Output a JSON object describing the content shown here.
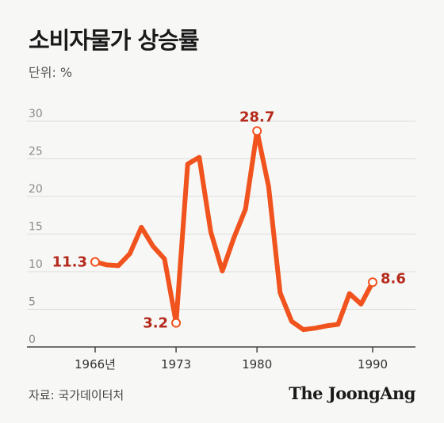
{
  "title": "소비자물가 상승률",
  "unit": "단위: %",
  "source": "자료: 국가데이터처",
  "brand": "The JoongAng",
  "chart_data": {
    "type": "line",
    "title": "소비자물가 상승률",
    "xlabel": "",
    "ylabel": "",
    "ylim": [
      0,
      30
    ],
    "xlim": [
      1966,
      1990
    ],
    "yticks": [
      "0",
      "5",
      "10",
      "15",
      "20",
      "25",
      "30"
    ],
    "xticks": [
      {
        "x": 1966,
        "label": "1966년"
      },
      {
        "x": 1973,
        "label": "1973"
      },
      {
        "x": 1980,
        "label": "1980"
      },
      {
        "x": 1990,
        "label": "1990"
      }
    ],
    "grid": true,
    "line_color": "#f0531e",
    "label_color": "#b52a1c",
    "x": [
      1966,
      1967,
      1968,
      1969,
      1970,
      1971,
      1972,
      1973,
      1974,
      1975,
      1976,
      1977,
      1978,
      1979,
      1980,
      1981,
      1982,
      1983,
      1984,
      1985,
      1986,
      1987,
      1988,
      1989,
      1990
    ],
    "values": [
      11.3,
      10.9,
      10.8,
      12.4,
      15.9,
      13.4,
      11.7,
      3.2,
      24.3,
      25.2,
      15.3,
      10.1,
      14.5,
      18.3,
      28.7,
      21.3,
      7.2,
      3.4,
      2.3,
      2.5,
      2.8,
      3.0,
      7.1,
      5.7,
      8.6
    ],
    "annotations": [
      {
        "x": 1966,
        "y": 11.3,
        "label": "11.3",
        "pos": "left"
      },
      {
        "x": 1973,
        "y": 3.2,
        "label": "3.2",
        "pos": "left"
      },
      {
        "x": 1980,
        "y": 28.7,
        "label": "28.7",
        "pos": "top"
      },
      {
        "x": 1990,
        "y": 8.6,
        "label": "8.6",
        "pos": "right"
      }
    ]
  }
}
